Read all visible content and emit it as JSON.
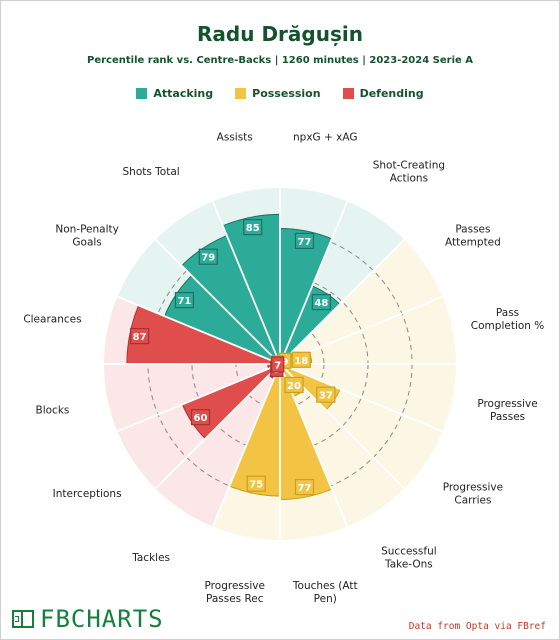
{
  "header": {
    "title": "Radu Drăgușin",
    "subtitle": "Percentile rank vs. Centre-Backs | 1260 minutes | 2023-2024 Serie A"
  },
  "legend": [
    {
      "label": "Attacking",
      "color": "#2bab98"
    },
    {
      "label": "Possession",
      "color": "#f3c443"
    },
    {
      "label": "Defending",
      "color": "#e04d4d"
    }
  ],
  "chart_data": {
    "type": "polar-bar",
    "scale": [
      0,
      100
    ],
    "grid_rings": [
      25,
      50,
      75
    ],
    "categories": [
      {
        "label": [
          "npxG + xAG"
        ],
        "value": 77,
        "group": "Attacking"
      },
      {
        "label": [
          "Shot-Creating",
          "Actions"
        ],
        "value": 48,
        "group": "Attacking"
      },
      {
        "label": [
          "Passes",
          "Attempted"
        ],
        "value": 9,
        "group": "Possession"
      },
      {
        "label": [
          "Pass",
          "Completion %"
        ],
        "value": 18,
        "group": "Possession"
      },
      {
        "label": [
          "Progressive",
          "Passes"
        ],
        "value": 4,
        "group": "Possession"
      },
      {
        "label": [
          "Progressive",
          "Carries"
        ],
        "value": 37,
        "group": "Possession"
      },
      {
        "label": [
          "Successful",
          "Take-Ons"
        ],
        "value": 20,
        "group": "Possession"
      },
      {
        "label": [
          "Touches (Att",
          "Pen)"
        ],
        "value": 77,
        "group": "Possession"
      },
      {
        "label": [
          "Progressive",
          "Passes Rec"
        ],
        "value": 75,
        "group": "Possession"
      },
      {
        "label": [
          "Tackles"
        ],
        "value": 9,
        "group": "Defending"
      },
      {
        "label": [
          "Interceptions"
        ],
        "value": 60,
        "group": "Defending"
      },
      {
        "label": [
          "Blocks"
        ],
        "value": 7,
        "group": "Defending"
      },
      {
        "label": [
          "Clearances"
        ],
        "value": 87,
        "group": "Defending"
      },
      {
        "label": [
          "Non-Penalty",
          "Goals"
        ],
        "value": 71,
        "group": "Attacking"
      },
      {
        "label": [
          "Shots Total"
        ],
        "value": 79,
        "group": "Attacking"
      },
      {
        "label": [
          "Assists"
        ],
        "value": 85,
        "group": "Attacking"
      }
    ],
    "colors": {
      "Attacking": {
        "bar": "#2bab98",
        "bg": "#e6f4f1",
        "border": "#1f6f63",
        "label_bg": "#2bab98"
      },
      "Possession": {
        "bar": "#f3c443",
        "bg": "#fcf7e4",
        "border": "#c9a21b",
        "label_bg": "#f3c443"
      },
      "Defending": {
        "bar": "#e04d4d",
        "bg": "#fbe7e7",
        "border": "#a83232",
        "label_bg": "#e04d4d"
      }
    }
  },
  "footer": {
    "brand": "FBCHARTS",
    "credit": "Data from Opta via FBref"
  }
}
